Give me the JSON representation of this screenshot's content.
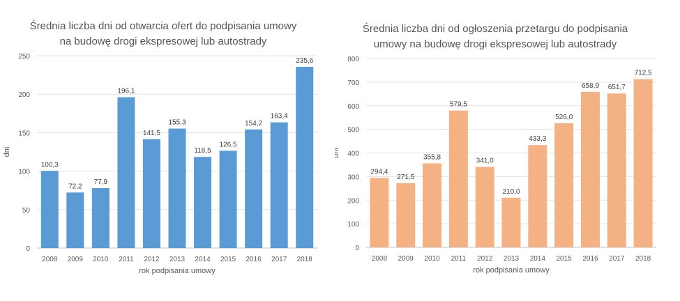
{
  "chart_data": [
    {
      "type": "bar",
      "title_lines": [
        "Średnia liczba dni od otwarcia ofert do podpisania umowy",
        "na budowę drogi ekspresowej lub autostrady"
      ],
      "xlabel": "rok podpisania umowy",
      "ylabel": "dni",
      "ylim": [
        0,
        250
      ],
      "yticks": [
        0,
        50,
        100,
        150,
        200,
        250
      ],
      "categories": [
        "2008",
        "2009",
        "2010",
        "2011",
        "2012",
        "2013",
        "2014",
        "2015",
        "2016",
        "2017",
        "2018"
      ],
      "values": [
        100.3,
        72.2,
        77.9,
        196.1,
        141.5,
        155.3,
        118.5,
        126.5,
        154.2,
        163.4,
        235.6
      ],
      "value_labels": [
        "100,3",
        "72,2",
        "77,9",
        "196,1",
        "141,5",
        "155,3",
        "118,5",
        "126,5",
        "154,2",
        "163,4",
        "235,6"
      ],
      "grid": true,
      "legend": "none",
      "color": "#5b9bd5"
    },
    {
      "type": "bar",
      "title_lines": [
        "Średnia liczba dni od ogłoszenia przetargu do podpisania",
        "umowy na budowę drogi ekspresowej lub autostrady"
      ],
      "xlabel": "rok podpisania umowy",
      "ylabel": "dni",
      "ylim": [
        0,
        800
      ],
      "yticks": [
        0,
        100,
        200,
        300,
        400,
        500,
        600,
        700,
        800
      ],
      "categories": [
        "2008",
        "2009",
        "2010",
        "2011",
        "2012",
        "2013",
        "2014",
        "2015",
        "2016",
        "2017",
        "2018"
      ],
      "values": [
        294.4,
        271.5,
        355.8,
        579.5,
        341.0,
        210.0,
        433.3,
        526.0,
        658.9,
        651.7,
        712.5
      ],
      "value_labels": [
        "294,4",
        "271,5",
        "355,8",
        "579,5",
        "341,0",
        "210,0",
        "433,3",
        "526,0",
        "658,9",
        "651,7",
        "712,5"
      ],
      "grid": true,
      "legend": "none",
      "color": "#f4b183"
    }
  ]
}
